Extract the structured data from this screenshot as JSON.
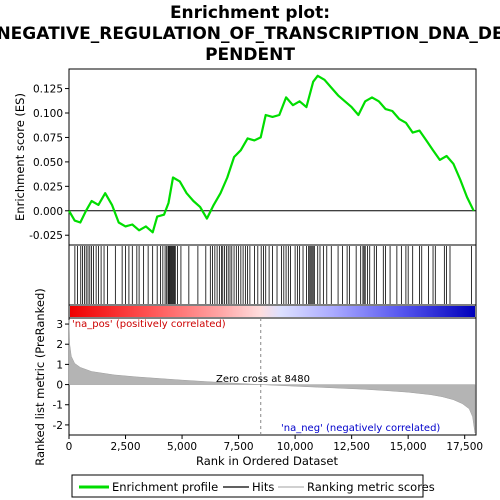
{
  "chart_data": {
    "type": "line",
    "title_lines": [
      "Enrichment plot:",
      "NEGATIVE_REGULATION_OF_TRANSCRIPTION_DNA_DE",
      "PENDENT"
    ],
    "es_panel": {
      "ylabel": "Enrichment score (ES)",
      "ylim": [
        -0.035,
        0.145
      ],
      "yticks": [
        -0.025,
        0.0,
        0.025,
        0.05,
        0.075,
        0.1,
        0.125
      ],
      "ytick_labels": [
        "-0.025",
        "0.000",
        "0.025",
        "0.050",
        "0.075",
        "0.100",
        "0.125"
      ],
      "series_name": "Enrichment profile",
      "color": "#00dd00",
      "points": [
        [
          0,
          0.0
        ],
        [
          250,
          -0.01
        ],
        [
          500,
          -0.012
        ],
        [
          750,
          0.0
        ],
        [
          1000,
          0.01
        ],
        [
          1300,
          0.006
        ],
        [
          1600,
          0.018
        ],
        [
          1900,
          0.006
        ],
        [
          2200,
          -0.012
        ],
        [
          2500,
          -0.016
        ],
        [
          2800,
          -0.014
        ],
        [
          3100,
          -0.02
        ],
        [
          3400,
          -0.016
        ],
        [
          3700,
          -0.022
        ],
        [
          3900,
          -0.006
        ],
        [
          4200,
          -0.004
        ],
        [
          4400,
          0.008
        ],
        [
          4600,
          0.034
        ],
        [
          4900,
          0.03
        ],
        [
          5200,
          0.018
        ],
        [
          5500,
          0.01
        ],
        [
          5800,
          0.004
        ],
        [
          6100,
          -0.008
        ],
        [
          6400,
          0.006
        ],
        [
          6700,
          0.018
        ],
        [
          7000,
          0.034
        ],
        [
          7300,
          0.055
        ],
        [
          7600,
          0.062
        ],
        [
          7900,
          0.074
        ],
        [
          8200,
          0.072
        ],
        [
          8480,
          0.075
        ],
        [
          8700,
          0.098
        ],
        [
          9000,
          0.096
        ],
        [
          9300,
          0.098
        ],
        [
          9600,
          0.116
        ],
        [
          9900,
          0.108
        ],
        [
          10200,
          0.112
        ],
        [
          10500,
          0.106
        ],
        [
          10800,
          0.132
        ],
        [
          11000,
          0.138
        ],
        [
          11300,
          0.134
        ],
        [
          11600,
          0.126
        ],
        [
          11900,
          0.118
        ],
        [
          12200,
          0.112
        ],
        [
          12500,
          0.106
        ],
        [
          12800,
          0.098
        ],
        [
          13100,
          0.112
        ],
        [
          13400,
          0.116
        ],
        [
          13700,
          0.112
        ],
        [
          14000,
          0.104
        ],
        [
          14300,
          0.102
        ],
        [
          14600,
          0.094
        ],
        [
          14900,
          0.09
        ],
        [
          15200,
          0.08
        ],
        [
          15500,
          0.082
        ],
        [
          15800,
          0.072
        ],
        [
          16100,
          0.062
        ],
        [
          16400,
          0.052
        ],
        [
          16700,
          0.056
        ],
        [
          17000,
          0.048
        ],
        [
          17300,
          0.032
        ],
        [
          17600,
          0.014
        ],
        [
          17900,
          0.0
        ]
      ]
    },
    "hits": [
      260,
      380,
      520,
      600,
      680,
      760,
      840,
      920,
      1000,
      1080,
      1200,
      1300,
      1420,
      1550,
      1700,
      2050,
      2350,
      2500,
      2650,
      2800,
      3000,
      3100,
      3300,
      3500,
      3700,
      3900,
      4050,
      4150,
      4250,
      4320,
      4380,
      4420,
      4460,
      4500,
      4540,
      4580,
      4620,
      4660,
      4700,
      4800,
      4950,
      5300,
      5700,
      6050,
      6250,
      6350,
      6450,
      6550,
      6650,
      6750,
      6800,
      6880,
      6960,
      7040,
      7120,
      7200,
      7300,
      7400,
      7500,
      7600,
      7700,
      7800,
      7900,
      8000,
      8200,
      8350,
      8500,
      8600,
      8700,
      8850,
      9000,
      9200,
      9400,
      9500,
      9600,
      9700,
      9800,
      10000,
      10100,
      10200,
      10350,
      10500,
      10600,
      10650,
      10700,
      10750,
      10800,
      10850,
      11000,
      11100,
      11250,
      11400,
      11600,
      11900,
      12100,
      12300,
      12400,
      12700,
      12900,
      13000,
      13050,
      13100,
      13200,
      13300,
      13500,
      13600,
      13900,
      14000,
      14200,
      14500,
      14700,
      14900,
      15000,
      15200,
      15500,
      15600,
      15900,
      16100,
      16200,
      16600,
      16700,
      16850,
      17800
    ],
    "ranked_panel": {
      "ylabel": "Ranked list metric (PreRanked)",
      "xlabel": "Rank in Ordered Dataset",
      "ylim": [
        -2.5,
        3.3
      ],
      "yticks": [
        -2,
        -1,
        0,
        1,
        2,
        3
      ],
      "ytick_labels": [
        "-2",
        "-1",
        "0",
        "1",
        "2",
        "3"
      ],
      "xlim": [
        0,
        18000
      ],
      "xticks": [
        0,
        2500,
        5000,
        7500,
        10000,
        12500,
        15000,
        17500
      ],
      "xtick_labels": [
        "0",
        "2,500",
        "5,000",
        "7,500",
        "10,000",
        "12,500",
        "15,000",
        "17,500"
      ],
      "metric_points": [
        [
          0,
          3.2
        ],
        [
          30,
          2.0
        ],
        [
          100,
          1.4
        ],
        [
          250,
          1.05
        ],
        [
          500,
          0.85
        ],
        [
          1000,
          0.65
        ],
        [
          2000,
          0.48
        ],
        [
          3000,
          0.38
        ],
        [
          4000,
          0.3
        ],
        [
          5000,
          0.22
        ],
        [
          6000,
          0.15
        ],
        [
          7000,
          0.09
        ],
        [
          8000,
          0.03
        ],
        [
          8480,
          0.0
        ],
        [
          9000,
          -0.03
        ],
        [
          10000,
          -0.08
        ],
        [
          11000,
          -0.13
        ],
        [
          12000,
          -0.18
        ],
        [
          13000,
          -0.23
        ],
        [
          14000,
          -0.3
        ],
        [
          15000,
          -0.38
        ],
        [
          16000,
          -0.5
        ],
        [
          16500,
          -0.6
        ],
        [
          17000,
          -0.75
        ],
        [
          17400,
          -0.95
        ],
        [
          17700,
          -1.2
        ],
        [
          17850,
          -1.6
        ],
        [
          17950,
          -2.4
        ]
      ],
      "zero_cross": 8480,
      "zero_cross_label": "Zero cross at 8480",
      "pos_label": "'na_pos' (positively correlated)",
      "neg_label": "'na_neg' (negatively correlated)",
      "pos_color": "#cc0000",
      "neg_color": "#0000cc"
    },
    "legend": [
      {
        "label": "Enrichment profile",
        "color": "#00dd00",
        "kind": "thick-line"
      },
      {
        "label": "Hits",
        "color": "#000000",
        "kind": "line"
      },
      {
        "label": "Ranking metric scores",
        "color": "#b4b4b4",
        "kind": "line"
      }
    ],
    "grid": false
  }
}
